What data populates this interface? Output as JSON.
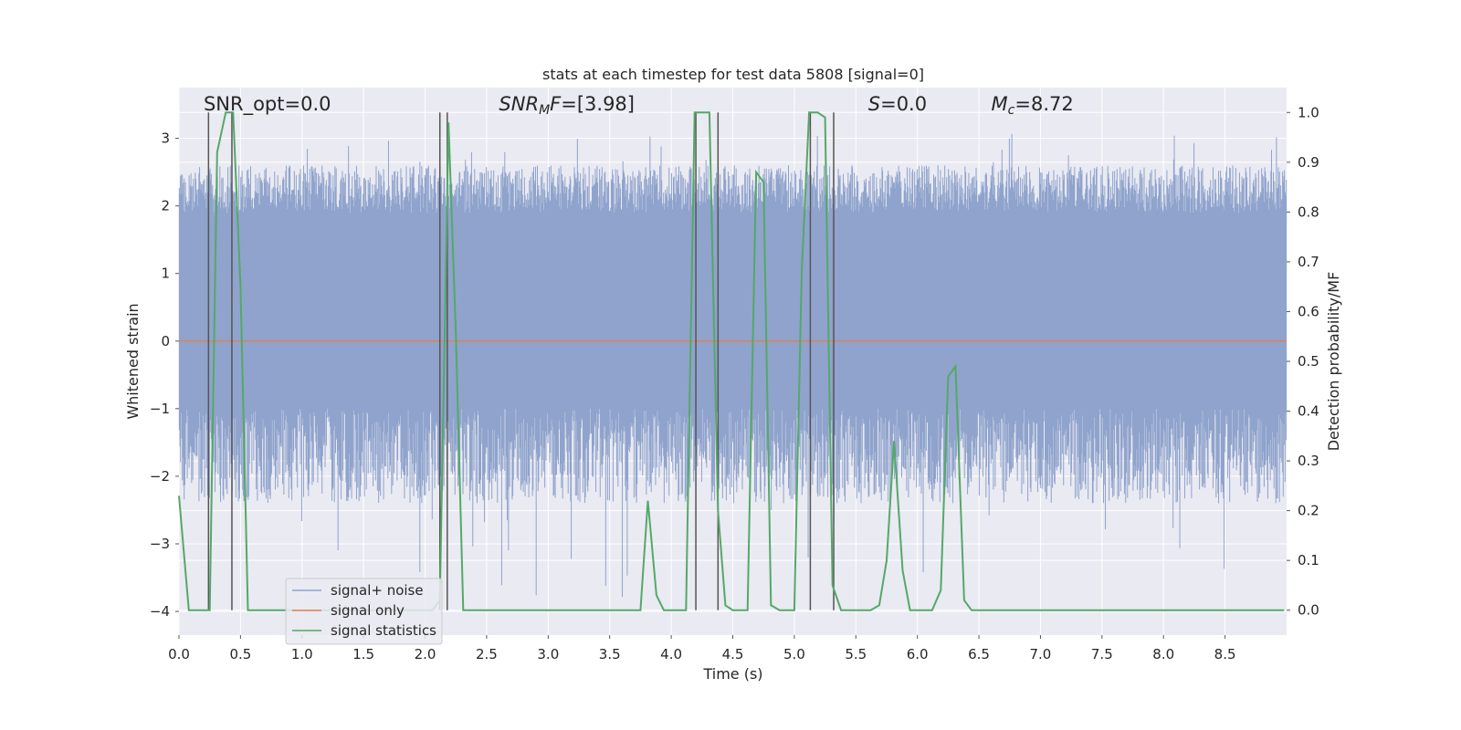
{
  "chart_data": {
    "type": "line",
    "title": "stats at each timestep for test data 5808 [signal=0]",
    "xlabel": "Time (s)",
    "ylabel_left": "Whitened strain",
    "ylabel_right": "Detection probability/MF",
    "xlim": [
      0,
      9.0
    ],
    "ylim_left": [
      -4.35,
      3.75
    ],
    "ylim_right": [
      -0.05,
      1.05
    ],
    "x_ticks": [
      "0.0",
      "0.5",
      "1.0",
      "1.5",
      "2.0",
      "2.5",
      "3.0",
      "3.5",
      "4.0",
      "4.5",
      "5.0",
      "5.5",
      "6.0",
      "6.5",
      "7.0",
      "7.5",
      "8.0",
      "8.5"
    ],
    "x_tick_values": [
      0,
      0.5,
      1.0,
      1.5,
      2.0,
      2.5,
      3.0,
      3.5,
      4.0,
      4.5,
      5.0,
      5.5,
      6.0,
      6.5,
      7.0,
      7.5,
      8.0,
      8.5
    ],
    "y_ticks_left": [
      "3",
      "2",
      "1",
      "0",
      "−1",
      "−2",
      "−3",
      "−4"
    ],
    "y_tick_values_left": [
      3,
      2,
      1,
      0,
      -1,
      -2,
      -3,
      -4
    ],
    "y_ticks_right": [
      "1.0",
      "0.9",
      "0.8",
      "0.7",
      "0.6",
      "0.5",
      "0.4",
      "0.3",
      "0.2",
      "0.1",
      "0.0"
    ],
    "y_tick_values_right": [
      1.0,
      0.9,
      0.8,
      0.7,
      0.6,
      0.5,
      0.4,
      0.3,
      0.2,
      0.1,
      0.0
    ],
    "grid": true,
    "legend_position": "lower-left",
    "colors": {
      "plot_bg": "#eaeaf2",
      "grid": "#ffffff",
      "noise": "#8fa3cc",
      "signal": "#dd8452",
      "stats": "#55a868",
      "vlines": "#555555"
    },
    "series": [
      {
        "name": "signal+ noise",
        "axis": "left",
        "style": "noise band",
        "band_core": [
          -1.0,
          1.9
        ],
        "typical_peaks": [
          -2.4,
          2.6
        ],
        "extremes": [
          -3.8,
          3.1
        ]
      },
      {
        "name": "signal only",
        "axis": "left",
        "x": [
          0,
          9.0
        ],
        "y": [
          0,
          0
        ]
      },
      {
        "name": "signal statistics",
        "axis": "right",
        "x": [
          0.0,
          0.08,
          0.25,
          0.31,
          0.38,
          0.44,
          0.5,
          0.56,
          0.62,
          0.69,
          0.75,
          0.81,
          0.88,
          0.94,
          1.0,
          1.06,
          1.12,
          1.19,
          1.25,
          1.31,
          1.38,
          1.44,
          1.5,
          1.56,
          1.62,
          1.69,
          1.75,
          1.81,
          1.88,
          1.94,
          2.0,
          2.06,
          2.12,
          2.19,
          2.25,
          2.31,
          2.38,
          2.44,
          2.5,
          2.56,
          2.62,
          2.69,
          2.75,
          2.81,
          2.88,
          2.94,
          3.0,
          3.06,
          3.12,
          3.19,
          3.25,
          3.31,
          3.38,
          3.44,
          3.5,
          3.56,
          3.62,
          3.69,
          3.75,
          3.81,
          3.88,
          3.94,
          4.0,
          4.06,
          4.12,
          4.19,
          4.25,
          4.31,
          4.38,
          4.44,
          4.5,
          4.56,
          4.62,
          4.69,
          4.75,
          4.81,
          4.88,
          4.94,
          5.0,
          5.06,
          5.12,
          5.19,
          5.25,
          5.31,
          5.38,
          5.44,
          5.5,
          5.56,
          5.62,
          5.69,
          5.75,
          5.81,
          5.88,
          5.94,
          6.0,
          6.06,
          6.12,
          6.19,
          6.25,
          6.31,
          6.38,
          6.44,
          6.5,
          6.56,
          6.62,
          6.69,
          6.75,
          6.81,
          6.88,
          6.94,
          7.0,
          7.5,
          8.0,
          8.5,
          8.98
        ],
        "y": [
          0.23,
          0.0,
          0.0,
          0.92,
          1.0,
          1.0,
          0.65,
          0.0,
          0.0,
          0.0,
          0.0,
          0.0,
          0.0,
          0.0,
          0.0,
          0.0,
          0.0,
          0.0,
          0.0,
          0.0,
          0.0,
          0.0,
          0.0,
          0.0,
          0.0,
          0.0,
          0.0,
          0.0,
          0.0,
          0.0,
          0.0,
          0.0,
          0.02,
          0.98,
          0.55,
          0.0,
          0.0,
          0.0,
          0.0,
          0.0,
          0.0,
          0.0,
          0.0,
          0.0,
          0.0,
          0.0,
          0.0,
          0.0,
          0.0,
          0.0,
          0.0,
          0.0,
          0.0,
          0.0,
          0.0,
          0.0,
          0.0,
          0.0,
          0.0,
          0.22,
          0.03,
          0.0,
          0.0,
          0.0,
          0.0,
          1.0,
          1.0,
          1.0,
          0.2,
          0.01,
          0.0,
          0.0,
          0.0,
          0.88,
          0.86,
          0.01,
          0.0,
          0.0,
          0.0,
          0.68,
          1.0,
          1.0,
          0.99,
          0.05,
          0.0,
          0.0,
          0.0,
          0.0,
          0.0,
          0.01,
          0.1,
          0.34,
          0.08,
          0.0,
          0.0,
          0.0,
          0.0,
          0.04,
          0.47,
          0.49,
          0.02,
          0.0,
          0.0,
          0.0,
          0.0,
          0.0,
          0.0,
          0.0,
          0.0,
          0.0,
          0.0,
          0.0,
          0.0,
          0.0,
          0.0
        ]
      }
    ],
    "vlines_x": [
      0.24,
      0.43,
      2.12,
      2.18,
      4.2,
      4.38,
      5.13,
      5.32
    ],
    "annotations": [
      {
        "text": "SNR_opt=0.0",
        "x": 0.2
      },
      {
        "text": "=[3.98]",
        "math_prefix": "SNR",
        "math_sub": "M",
        "math_tail": "F",
        "x": 2.6
      },
      {
        "text": "=0.0",
        "math_prefix": "S",
        "x": 5.6
      },
      {
        "text": "=8.72",
        "math_prefix": "M",
        "math_sub": "c",
        "x": 6.6
      }
    ]
  }
}
